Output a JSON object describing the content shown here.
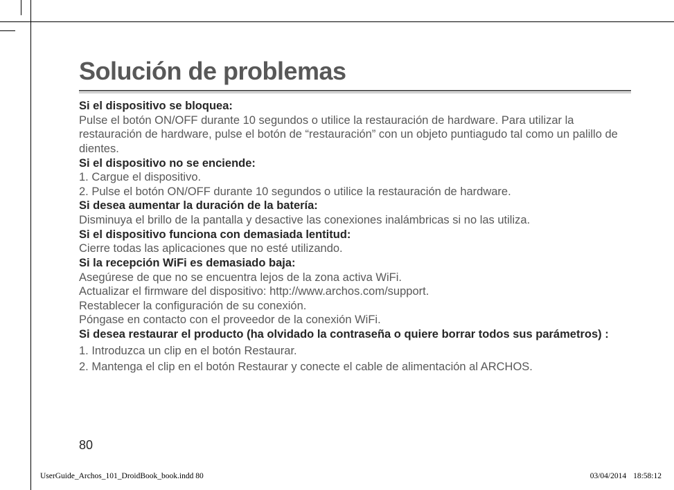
{
  "page": {
    "title": "Solución de problemas",
    "number": "80"
  },
  "colors": {
    "heading": "#585858",
    "body": "#585858",
    "bold": "#262626",
    "rule_dark": "#585858",
    "rule_light": "#c8c8c8",
    "background": "#ffffff",
    "black": "#000000"
  },
  "typography": {
    "title_size_pt": 27,
    "body_size_pt": 12,
    "footer_size_pt": 8.5,
    "body_font": "Myriad Pro / sans-serif",
    "footer_font": "Times New Roman / serif"
  },
  "sections": [
    {
      "heading": "Si el dispositivo se bloquea:",
      "body": "Pulse el botón ON/OFF durante 10 segundos o utilice la restauración de hardware. Para utilizar la restauración de hardware, pulse el botón de “restauración” con un objeto puntiagudo tal como un palillo de dientes."
    },
    {
      "heading": "Si el dispositivo no se enciende:",
      "steps": [
        "1. Cargue el dispositivo.",
        "2. Pulse el botón ON/OFF durante 10 segundos o utilice la restauración de hardware."
      ]
    },
    {
      "heading": "Si desea aumentar la duración de la batería:",
      "body": "Disminuya el brillo de la pantalla y desactive las conexiones inalámbricas si no las utiliza."
    },
    {
      "heading": "Si el dispositivo funciona con demasiada lentitud:",
      "body": "Cierre todas las aplicaciones que no esté utilizando."
    },
    {
      "heading": "Si la recepción WiFi es demasiado baja:",
      "lines": [
        "Asegúrese de que no se encuentra lejos de la zona activa WiFi.",
        "Actualizar el firmware del dispositivo: http://www.archos.com/support.",
        "Restablecer la configuración de su conexión.",
        "Póngase en contacto con el proveedor de la conexión WiFi."
      ]
    },
    {
      "heading": "Si desea restaurar el producto (ha olvidado la contraseña o quiere borrar todos sus parámetros) :",
      "steps_spaced": [
        "1. Introduzca un clip en el botón Restaurar.",
        "2. Mantenga el clip en el botón Restaurar y conecte el cable de alimentación al ARCHOS."
      ]
    }
  ],
  "footer": {
    "file": "UserGuide_Archos_101_DroidBook_book.indd   80",
    "date": "03/04/2014",
    "time": "18:58:12"
  }
}
